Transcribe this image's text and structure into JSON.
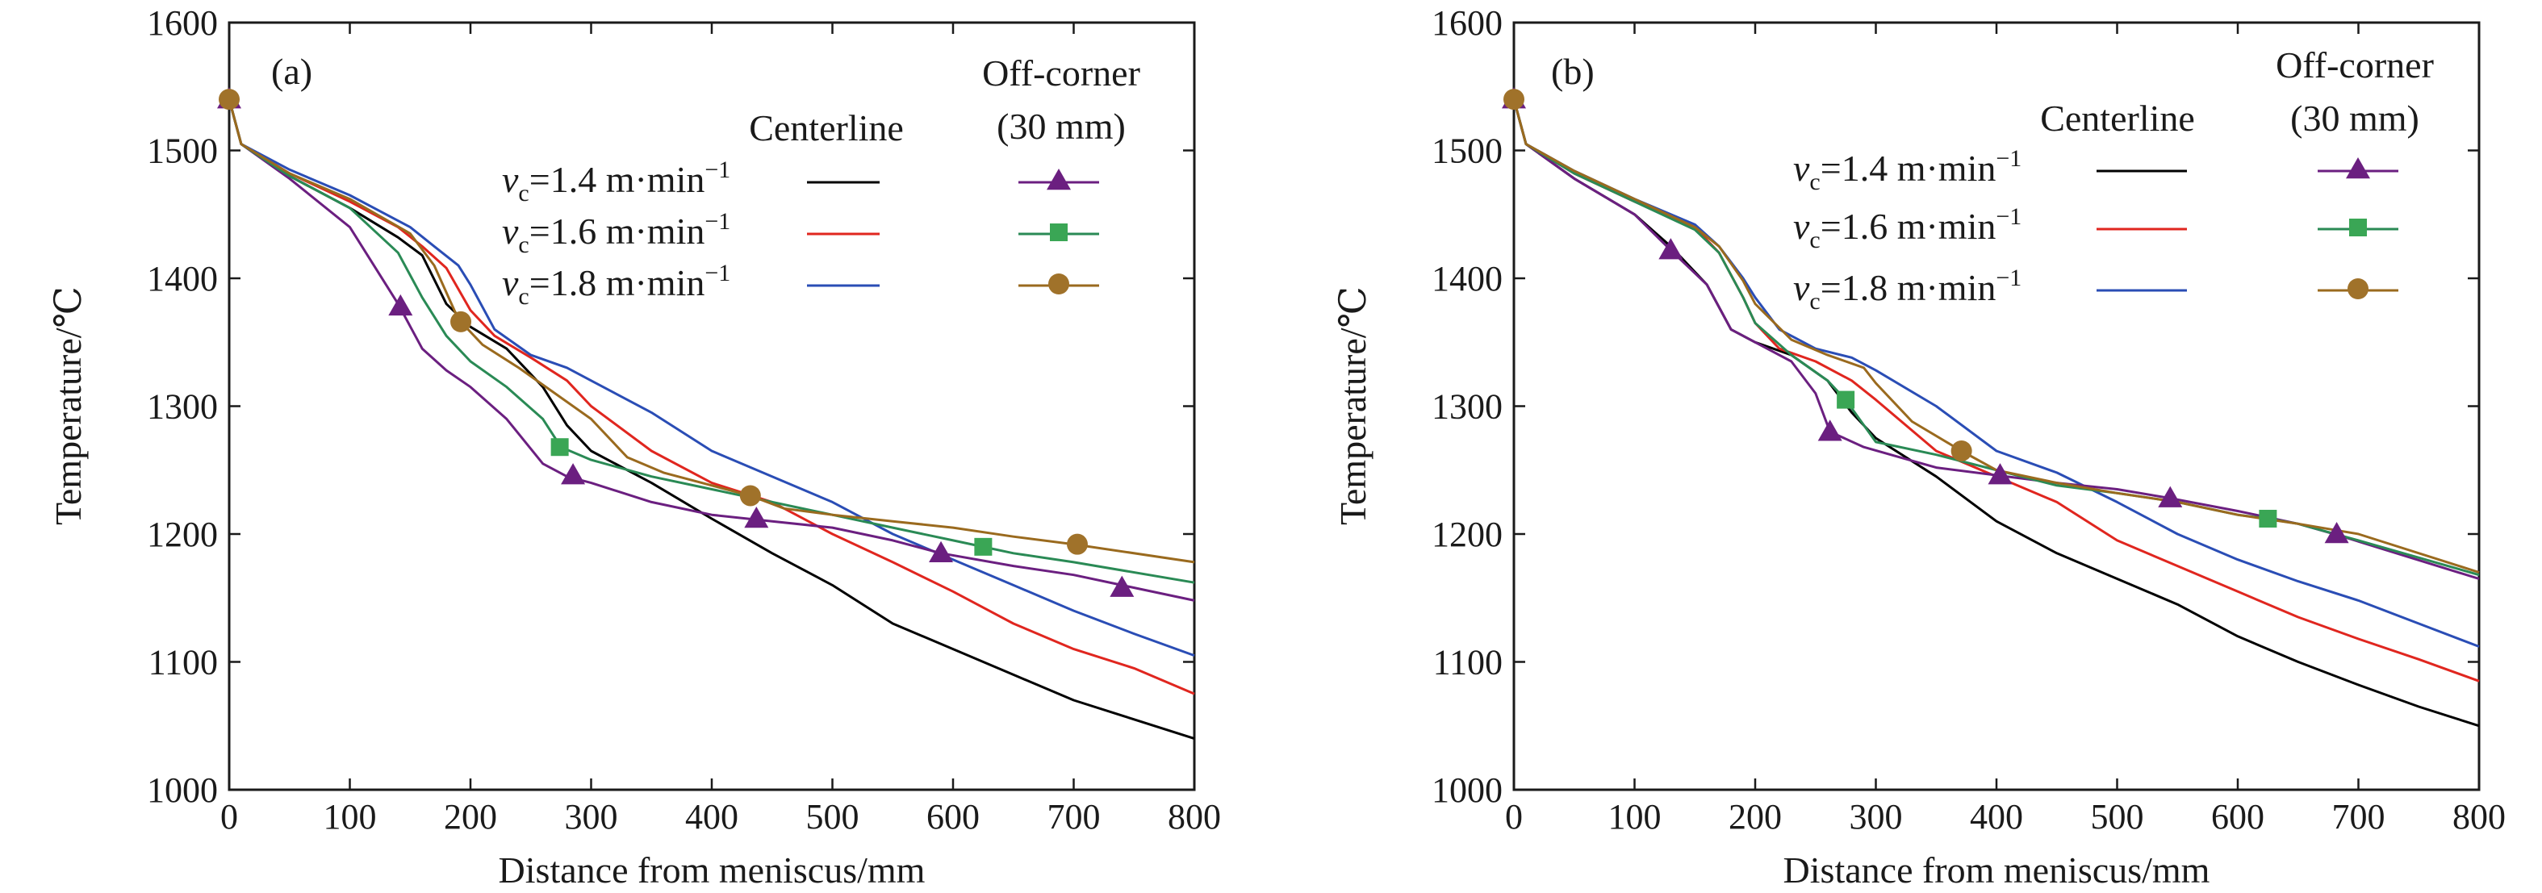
{
  "figure": {
    "panels": [
      "(a)",
      "(b)"
    ]
  },
  "legend": {
    "centerline_title": "Centerline",
    "offcorner_title_1": "Off-corner",
    "offcorner_title_2": "(30 mm)",
    "entries": [
      {
        "var": "v",
        "sub": "c",
        "eq": "=1.4 m·min",
        "sup": "−1"
      },
      {
        "var": "v",
        "sub": "c",
        "eq": "=1.6 m·min",
        "sup": "−1"
      },
      {
        "var": "v",
        "sub": "c",
        "eq": "=1.8 m·min",
        "sup": "−1"
      }
    ]
  },
  "colors": {
    "center_1_4": "#000000",
    "center_1_6": "#e0261f",
    "center_1_8": "#2a4db5",
    "off_1_4": "#6b1f80",
    "off_1_6": "#2a8a55",
    "off_1_8": "#9a6a1e",
    "marker_1_6": "#3aa655",
    "marker_1_8": "#a0722a"
  },
  "chart_data": [
    {
      "type": "line",
      "panel": "(a)",
      "xlabel": "Distance from meniscus/mm",
      "ylabel": "Temperature/℃",
      "xlim": [
        0,
        800
      ],
      "ylim": [
        1000,
        1600
      ],
      "xticks": [
        "0",
        "100",
        "200",
        "300",
        "400",
        "500",
        "600",
        "700",
        "800"
      ],
      "yticks": [
        "1000",
        "1100",
        "1200",
        "1300",
        "1400",
        "1500",
        "1600"
      ],
      "grid": false,
      "legend_position": "top-right",
      "series": [
        {
          "key": "center_1_4",
          "group": "Centerline",
          "x": [
            0,
            10,
            50,
            100,
            140,
            160,
            180,
            200,
            230,
            260,
            280,
            300,
            350,
            400,
            450,
            500,
            550,
            600,
            650,
            700,
            750,
            800
          ],
          "y": [
            1540,
            1505,
            1480,
            1455,
            1432,
            1418,
            1380,
            1362,
            1345,
            1315,
            1285,
            1265,
            1240,
            1212,
            1185,
            1160,
            1130,
            1110,
            1090,
            1070,
            1055,
            1040
          ]
        },
        {
          "key": "center_1_6",
          "group": "Centerline",
          "x": [
            0,
            10,
            50,
            100,
            140,
            160,
            180,
            200,
            220,
            250,
            280,
            300,
            350,
            400,
            450,
            500,
            550,
            600,
            650,
            700,
            750,
            800
          ],
          "y": [
            1540,
            1505,
            1482,
            1460,
            1440,
            1425,
            1408,
            1375,
            1355,
            1338,
            1320,
            1300,
            1265,
            1240,
            1225,
            1200,
            1178,
            1155,
            1130,
            1110,
            1095,
            1075
          ]
        },
        {
          "key": "center_1_8",
          "group": "Centerline",
          "x": [
            0,
            10,
            50,
            100,
            150,
            170,
            190,
            200,
            220,
            250,
            280,
            300,
            350,
            400,
            450,
            500,
            550,
            600,
            650,
            700,
            750,
            800
          ],
          "y": [
            1540,
            1505,
            1485,
            1465,
            1440,
            1425,
            1410,
            1395,
            1360,
            1340,
            1330,
            1320,
            1295,
            1265,
            1245,
            1225,
            1200,
            1180,
            1160,
            1140,
            1122,
            1105
          ]
        },
        {
          "key": "off_1_4",
          "group": "Off-corner",
          "marker": "triangle",
          "x": [
            0,
            10,
            50,
            100,
            140,
            160,
            180,
            200,
            230,
            260,
            280,
            300,
            350,
            400,
            450,
            500,
            550,
            590,
            650,
            700,
            740,
            800
          ],
          "y": [
            1540,
            1505,
            1478,
            1440,
            1380,
            1345,
            1328,
            1315,
            1290,
            1255,
            1245,
            1240,
            1225,
            1215,
            1210,
            1205,
            1195,
            1185,
            1175,
            1168,
            1160,
            1148
          ]
        },
        {
          "key": "off_1_6",
          "group": "Off-corner",
          "marker": "square",
          "x": [
            0,
            10,
            50,
            100,
            140,
            160,
            180,
            200,
            230,
            260,
            275,
            300,
            350,
            400,
            450,
            500,
            550,
            600,
            625,
            650,
            700,
            800
          ],
          "y": [
            1540,
            1505,
            1480,
            1455,
            1420,
            1385,
            1355,
            1335,
            1315,
            1290,
            1268,
            1258,
            1245,
            1235,
            1225,
            1215,
            1205,
            1195,
            1190,
            1185,
            1178,
            1162
          ]
        },
        {
          "key": "off_1_8",
          "group": "Off-corner",
          "marker": "circle",
          "x": [
            0,
            10,
            50,
            100,
            150,
            170,
            190,
            210,
            240,
            270,
            300,
            330,
            360,
            400,
            432,
            460,
            500,
            550,
            600,
            650,
            700,
            800
          ],
          "y": [
            1540,
            1505,
            1482,
            1462,
            1435,
            1410,
            1368,
            1348,
            1330,
            1310,
            1290,
            1260,
            1248,
            1238,
            1230,
            1220,
            1215,
            1210,
            1205,
            1198,
            1192,
            1178
          ]
        }
      ],
      "markers": [
        {
          "key": "off_1_4",
          "marker": "triangle",
          "x": [
            0,
            142,
            285,
            437,
            590,
            740
          ],
          "y": [
            1540,
            1378,
            1246,
            1212,
            1185,
            1158
          ]
        },
        {
          "key": "off_1_6",
          "marker": "square",
          "x": [
            274,
            625
          ],
          "y": [
            1268,
            1190
          ]
        },
        {
          "key": "off_1_8",
          "marker": "circle",
          "x": [
            0,
            192,
            432,
            703
          ],
          "y": [
            1540,
            1366,
            1230,
            1192
          ]
        }
      ]
    },
    {
      "type": "line",
      "panel": "(b)",
      "xlabel": "Distance from meniscus/mm",
      "ylabel": "Temperature/℃",
      "xlim": [
        0,
        800
      ],
      "ylim": [
        1000,
        1600
      ],
      "xticks": [
        "0",
        "100",
        "200",
        "300",
        "400",
        "500",
        "600",
        "700",
        "800"
      ],
      "yticks": [
        "1000",
        "1100",
        "1200",
        "1300",
        "1400",
        "1500",
        "1600"
      ],
      "grid": false,
      "legend_position": "top-right",
      "series": [
        {
          "key": "center_1_4",
          "group": "Centerline",
          "x": [
            0,
            10,
            50,
            100,
            130,
            160,
            180,
            200,
            230,
            260,
            280,
            300,
            350,
            400,
            450,
            500,
            550,
            600,
            650,
            700,
            750,
            800
          ],
          "y": [
            1540,
            1505,
            1478,
            1450,
            1425,
            1395,
            1360,
            1350,
            1340,
            1320,
            1295,
            1275,
            1245,
            1210,
            1185,
            1165,
            1145,
            1120,
            1100,
            1082,
            1065,
            1050
          ]
        },
        {
          "key": "center_1_6",
          "group": "Centerline",
          "x": [
            0,
            10,
            50,
            100,
            150,
            170,
            190,
            200,
            220,
            250,
            280,
            300,
            350,
            400,
            450,
            500,
            550,
            600,
            650,
            700,
            750,
            800
          ],
          "y": [
            1540,
            1505,
            1482,
            1460,
            1440,
            1420,
            1385,
            1365,
            1345,
            1335,
            1320,
            1305,
            1265,
            1245,
            1225,
            1195,
            1175,
            1155,
            1135,
            1118,
            1102,
            1085
          ]
        },
        {
          "key": "center_1_8",
          "group": "Centerline",
          "x": [
            0,
            10,
            50,
            100,
            150,
            170,
            190,
            200,
            220,
            250,
            280,
            300,
            350,
            400,
            450,
            500,
            550,
            600,
            650,
            700,
            750,
            800
          ],
          "y": [
            1540,
            1505,
            1484,
            1462,
            1442,
            1425,
            1400,
            1385,
            1360,
            1345,
            1338,
            1328,
            1300,
            1265,
            1248,
            1225,
            1200,
            1180,
            1163,
            1148,
            1130,
            1112
          ]
        },
        {
          "key": "off_1_4",
          "group": "Off-corner",
          "marker": "triangle",
          "x": [
            0,
            10,
            50,
            100,
            130,
            160,
            180,
            200,
            230,
            250,
            262,
            290,
            320,
            350,
            400,
            450,
            500,
            544,
            600,
            650,
            680,
            800
          ],
          "y": [
            1540,
            1505,
            1478,
            1450,
            1422,
            1395,
            1360,
            1350,
            1335,
            1310,
            1280,
            1268,
            1260,
            1252,
            1246,
            1240,
            1235,
            1228,
            1218,
            1208,
            1200,
            1165
          ]
        },
        {
          "key": "off_1_6",
          "group": "Off-corner",
          "marker": "square",
          "x": [
            0,
            10,
            50,
            100,
            150,
            170,
            190,
            200,
            230,
            260,
            275,
            300,
            350,
            400,
            450,
            500,
            550,
            600,
            625,
            650,
            700,
            800
          ],
          "y": [
            1540,
            1505,
            1482,
            1460,
            1438,
            1420,
            1385,
            1365,
            1340,
            1320,
            1305,
            1272,
            1262,
            1250,
            1238,
            1232,
            1225,
            1215,
            1212,
            1208,
            1195,
            1168
          ]
        },
        {
          "key": "off_1_8",
          "group": "Off-corner",
          "marker": "circle",
          "x": [
            0,
            10,
            50,
            100,
            150,
            170,
            190,
            200,
            230,
            260,
            290,
            300,
            330,
            371,
            400,
            450,
            500,
            550,
            600,
            650,
            700,
            800
          ],
          "y": [
            1540,
            1505,
            1484,
            1462,
            1440,
            1425,
            1398,
            1380,
            1352,
            1340,
            1330,
            1318,
            1288,
            1265,
            1250,
            1240,
            1232,
            1225,
            1215,
            1208,
            1200,
            1170
          ]
        }
      ],
      "markers": [
        {
          "key": "off_1_4",
          "marker": "triangle",
          "x": [
            0,
            130,
            262,
            403,
            544,
            682
          ],
          "y": [
            1540,
            1422,
            1280,
            1246,
            1228,
            1200
          ]
        },
        {
          "key": "off_1_6",
          "marker": "square",
          "x": [
            275,
            625
          ],
          "y": [
            1305,
            1212
          ]
        },
        {
          "key": "off_1_8",
          "marker": "circle",
          "x": [
            0,
            371
          ],
          "y": [
            1540,
            1265
          ]
        }
      ]
    }
  ]
}
